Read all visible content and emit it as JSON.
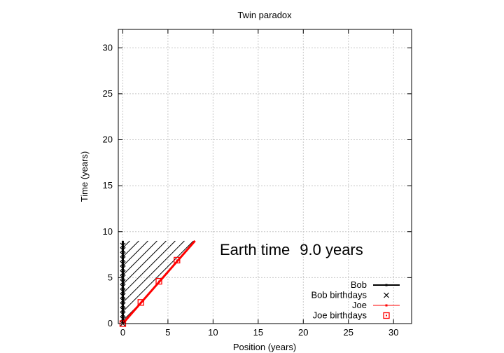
{
  "chart_data": {
    "type": "line",
    "title": "Twin paradox",
    "xlabel": "Position (years)",
    "ylabel": "Time (years)",
    "xlim": [
      -0.5,
      32
    ],
    "ylim": [
      0,
      32
    ],
    "xticks": [
      0,
      5,
      10,
      15,
      20,
      25,
      30
    ],
    "yticks": [
      0,
      5,
      10,
      15,
      20,
      25,
      30
    ],
    "grid": true,
    "legend_position": "bottom-right",
    "annotation": {
      "label": "Earth time",
      "value": "9.0 years"
    },
    "hatch_region": {
      "description": "hatched area between Bob and Joe worldlines",
      "t_max": 9.0
    },
    "series": [
      {
        "name": "Bob",
        "color": "#000000",
        "x": [
          0,
          0
        ],
        "y": [
          0,
          9.0
        ]
      },
      {
        "name": "Bob birthdays",
        "color": "#000000",
        "marker": "x",
        "x": [
          0,
          0,
          0,
          0,
          0,
          0,
          0,
          0,
          0,
          0,
          0,
          0,
          0,
          0,
          0,
          0,
          0,
          0
        ],
        "y": [
          0.0,
          0.5,
          1.0,
          1.5,
          2.0,
          2.5,
          3.0,
          3.5,
          4.0,
          4.5,
          5.0,
          5.5,
          6.0,
          6.5,
          7.0,
          7.5,
          8.0,
          8.5
        ]
      },
      {
        "name": "Joe",
        "color": "#ff0000",
        "x": [
          0,
          8.0
        ],
        "y": [
          0,
          9.0
        ]
      },
      {
        "name": "Joe birthdays",
        "color": "#ff0000",
        "marker": "square",
        "x": [
          0,
          2.0,
          4.0,
          6.0
        ],
        "y": [
          0,
          2.3,
          4.6,
          6.9
        ]
      }
    ]
  }
}
